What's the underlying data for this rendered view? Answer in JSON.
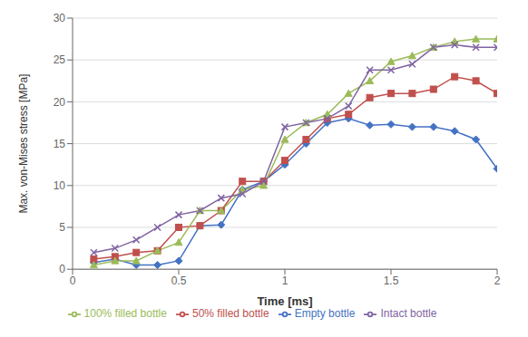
{
  "chart_data": {
    "type": "line",
    "xlabel": "Time [ms]",
    "ylabel": "Max. von-Mises stress [MPa]",
    "xlim": [
      0,
      2.0
    ],
    "ylim": [
      0,
      30
    ],
    "xticks": [
      0,
      0.5,
      1,
      1.5,
      2
    ],
    "yticks": [
      0,
      5,
      10,
      15,
      20,
      25,
      30
    ],
    "grid": "y",
    "legend": "bottom",
    "x": [
      0.1,
      0.2,
      0.3,
      0.4,
      0.5,
      0.6,
      0.7,
      0.8,
      0.9,
      1.0,
      1.1,
      1.2,
      1.3,
      1.4,
      1.5,
      1.6,
      1.7,
      1.8,
      1.9,
      2.0
    ],
    "series": [
      {
        "name": "Empty bottle",
        "color": "#4472C4",
        "marker": "diamond",
        "values": [
          0.8,
          1.2,
          0.5,
          0.5,
          1.0,
          5.2,
          5.3,
          9.5,
          10.5,
          12.5,
          15.0,
          17.5,
          18.0,
          17.2,
          17.3,
          17.0,
          17.0,
          16.5,
          15.5,
          12.0
        ]
      },
      {
        "name": "50% filled bottle",
        "color": "#C0504D",
        "marker": "square",
        "values": [
          1.2,
          1.5,
          2.0,
          2.2,
          5.0,
          5.2,
          7.0,
          10.5,
          10.5,
          13.0,
          15.5,
          18.0,
          18.5,
          20.5,
          21.0,
          21.0,
          21.5,
          23.0,
          22.5,
          21.0
        ]
      },
      {
        "name": "100% filled bottle",
        "color": "#9BBB59",
        "marker": "triangle",
        "values": [
          0.5,
          1.0,
          1.0,
          2.2,
          3.2,
          7.0,
          7.0,
          9.5,
          10.0,
          15.5,
          17.5,
          18.5,
          21.0,
          22.5,
          24.8,
          25.5,
          26.5,
          27.2,
          27.5,
          27.5
        ]
      },
      {
        "name": "Intact bottle",
        "color": "#8064A2",
        "marker": "x",
        "values": [
          2.0,
          2.5,
          3.5,
          5.0,
          6.5,
          7.0,
          8.5,
          9.0,
          10.5,
          17.0,
          17.5,
          18.0,
          19.5,
          23.8,
          23.8,
          24.5,
          26.5,
          26.8,
          26.5,
          26.5
        ]
      }
    ]
  }
}
